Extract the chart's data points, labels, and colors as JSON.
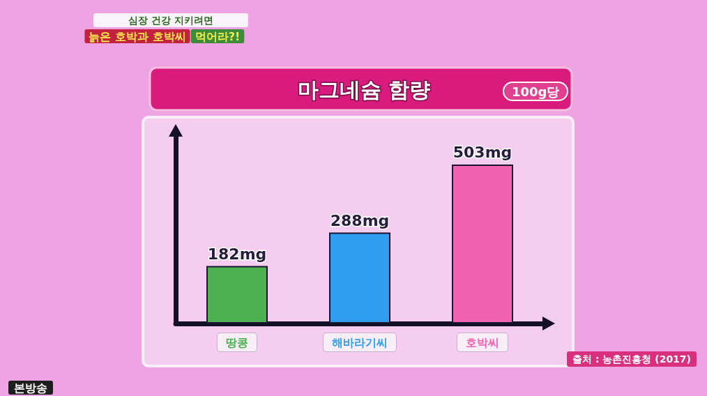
{
  "chart_data": {
    "type": "bar",
    "title": "마그네슘 함량",
    "subtitle": "100g당",
    "categories": [
      "땅콩",
      "해바라기씨",
      "호박씨"
    ],
    "values": [
      182,
      288,
      503
    ],
    "colors": [
      "#4caf50",
      "#2f9df0",
      "#f062b0"
    ],
    "value_labels": [
      "182mg",
      "288mg",
      "503mg"
    ],
    "tick_labels": "x",
    "annotations": [
      "심장 건강 지키려면",
      "늙은 호박과 호박씨",
      "먹어라?!",
      "출처 : 농촌진흥청 (2017)",
      "본방송"
    ]
  }
}
